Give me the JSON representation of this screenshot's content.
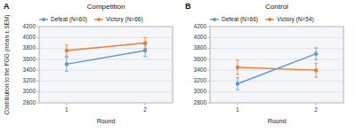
{
  "chart_data": [
    {
      "type": "line",
      "title": "Competition",
      "annotations": [
        "A"
      ],
      "x": [
        1,
        2
      ],
      "xlim": [
        0.65,
        2.35
      ],
      "xticks": [
        1,
        2
      ],
      "ylim": [
        2800,
        4200
      ],
      "yticks": [
        2800,
        3000,
        3200,
        3400,
        3600,
        3800,
        4000,
        4200
      ],
      "x_label": "Round",
      "y_label": "Contribution to the PGG (mean ± SEM)",
      "grid": true,
      "legend": "upper left",
      "marker": "circle",
      "series": [
        {
          "name": "Defeat (N=60)",
          "color": "#5b9bd5",
          "values": [
            3510,
            3760
          ],
          "errors": [
            130,
            110
          ]
        },
        {
          "name": "Victory (N=66)",
          "color": "#ed7d31",
          "values": [
            3760,
            3900
          ],
          "errors": [
            100,
            100
          ]
        }
      ]
    },
    {
      "type": "line",
      "title": "Control",
      "annotations": [
        "B"
      ],
      "x": [
        1,
        2
      ],
      "xlim": [
        0.65,
        2.35
      ],
      "xticks": [
        1,
        2
      ],
      "ylim": [
        2800,
        4200
      ],
      "yticks": [
        2800,
        3000,
        3200,
        3400,
        3600,
        3800,
        4000,
        4200
      ],
      "x_label": "Round",
      "grid": true,
      "legend": "upper left",
      "marker": "circle",
      "series": [
        {
          "name": "Defeat (N=66)",
          "color": "#5b9bd5",
          "values": [
            3150,
            3700
          ],
          "errors": [
            110,
            110
          ]
        },
        {
          "name": "Victory (N=54)",
          "color": "#ed7d31",
          "values": [
            3450,
            3400
          ],
          "errors": [
            130,
            130
          ]
        }
      ]
    }
  ]
}
